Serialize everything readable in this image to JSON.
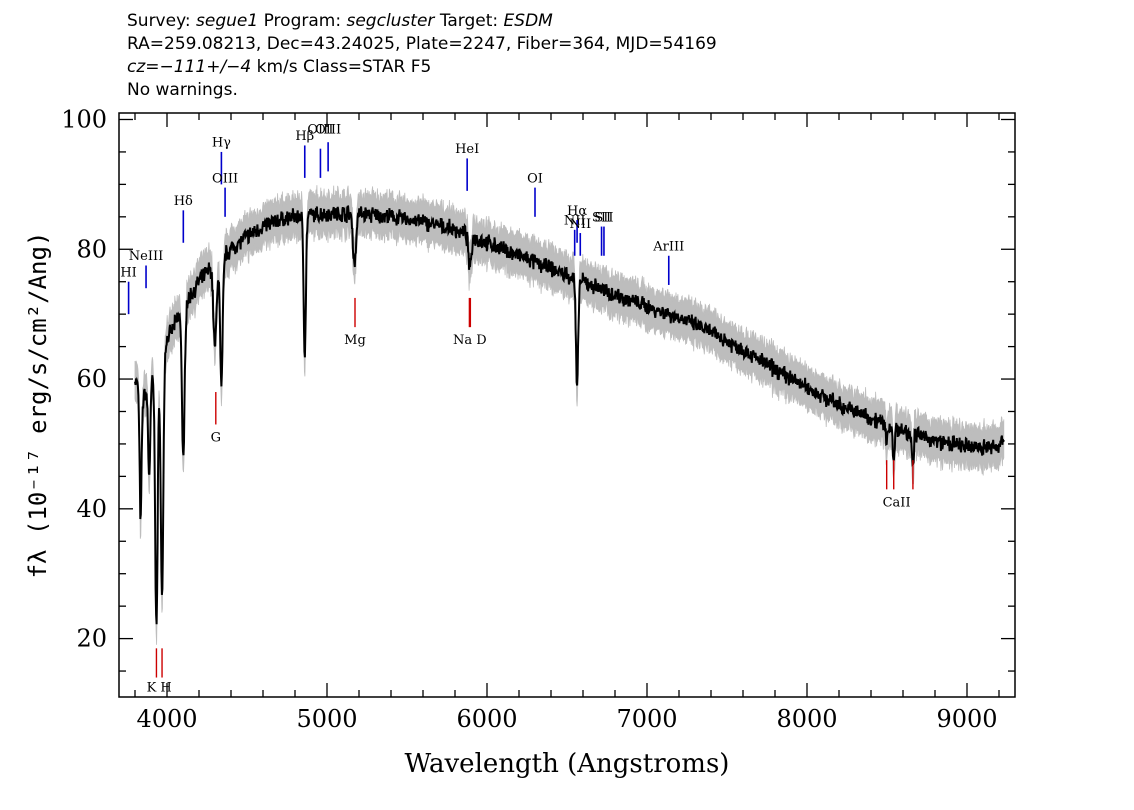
{
  "header": {
    "survey_label": "Survey:",
    "survey": "segue1",
    "program_label": "Program:",
    "program": "segcluster",
    "target_label": "Target:",
    "target": "ESDM",
    "line2": "RA=259.08213, Dec=43.24025, Plate=2247, Fiber=364, MJD=54169",
    "cz_label": "cz=",
    "cz_value": "−111+/−4",
    "cz_rest": " km/s Class=STAR F5",
    "line4": "No warnings."
  },
  "chart_data": {
    "type": "line",
    "title": "",
    "xlabel": "Wavelength (Angstroms)",
    "ylabel": "fλ (10⁻¹⁷ erg/s/cm²/Ang)",
    "xlim": [
      3700,
      9300
    ],
    "ylim": [
      11,
      101
    ],
    "x_ticks": [
      4000,
      5000,
      6000,
      7000,
      8000,
      9000
    ],
    "y_ticks": [
      20,
      40,
      60,
      80,
      100
    ],
    "grid": false,
    "colors": {
      "spectrum": "#000000",
      "error_band": "#bdbdbd",
      "emission": "#0000cc",
      "absorption": "#cc0000"
    },
    "continuum": [
      [
        3800,
        60
      ],
      [
        3850,
        57
      ],
      [
        3900,
        60
      ],
      [
        4000,
        66
      ],
      [
        4100,
        71
      ],
      [
        4200,
        75
      ],
      [
        4300,
        78
      ],
      [
        4400,
        80
      ],
      [
        4500,
        82
      ],
      [
        4600,
        83.5
      ],
      [
        4700,
        84.5
      ],
      [
        4800,
        85
      ],
      [
        5000,
        85.5
      ],
      [
        5200,
        85.5
      ],
      [
        5400,
        85
      ],
      [
        5600,
        84.2
      ],
      [
        5800,
        83
      ],
      [
        6000,
        81
      ],
      [
        6200,
        79
      ],
      [
        6400,
        77
      ],
      [
        6600,
        75
      ],
      [
        6800,
        73
      ],
      [
        7000,
        71.2
      ],
      [
        7200,
        69.5
      ],
      [
        7400,
        67.2
      ],
      [
        7600,
        64.5
      ],
      [
        7800,
        61.5
      ],
      [
        8000,
        58.7
      ],
      [
        8200,
        56
      ],
      [
        8400,
        54
      ],
      [
        8600,
        52
      ],
      [
        8800,
        50.5
      ],
      [
        9000,
        49.5
      ],
      [
        9200,
        49.5
      ],
      [
        9230,
        51.5
      ]
    ],
    "absorption_features": [
      {
        "x": 3835,
        "depth": 20,
        "width": 6
      },
      {
        "x": 3889,
        "depth": 14,
        "width": 7
      },
      {
        "x": 3934,
        "depth": 40,
        "width": 8
      },
      {
        "x": 3969,
        "depth": 38,
        "width": 8
      },
      {
        "x": 4102,
        "depth": 24,
        "width": 8
      },
      {
        "x": 4300,
        "depth": 13,
        "width": 10
      },
      {
        "x": 4340,
        "depth": 20,
        "width": 8
      },
      {
        "x": 4861,
        "depth": 21,
        "width": 7
      },
      {
        "x": 5172,
        "depth": 8,
        "width": 9
      },
      {
        "x": 5893,
        "depth": 5,
        "width": 9
      },
      {
        "x": 6563,
        "depth": 17,
        "width": 7
      },
      {
        "x": 8498,
        "depth": 3,
        "width": 5
      },
      {
        "x": 8542,
        "depth": 6,
        "width": 5
      },
      {
        "x": 8662,
        "depth": 5,
        "width": 5
      }
    ],
    "error_band_halfwidth": 2.5,
    "emission_lines": [
      {
        "label": "HI",
        "x": 3760,
        "y_low": 70,
        "y_high": 75,
        "label_y": 75.5
      },
      {
        "label": "NeIII",
        "x": 3869,
        "y_low": 74,
        "y_high": 77.5,
        "label_y": 78
      },
      {
        "label": "Hδ",
        "x": 4102,
        "y_low": 81,
        "y_high": 86,
        "label_y": 86.5
      },
      {
        "label": "Hγ",
        "x": 4340,
        "y_low": 90,
        "y_high": 95,
        "label_y": 95.5
      },
      {
        "label": "OIII",
        "x": 4363,
        "y_low": 85,
        "y_high": 89.5,
        "label_y": 90
      },
      {
        "label": "Hβ",
        "x": 4861,
        "y_low": 91,
        "y_high": 96,
        "label_y": 96.5
      },
      {
        "label": "OIII",
        "x": 4959,
        "y_low": 91,
        "y_high": 95.5,
        "label_y": 97.5
      },
      {
        "label": "OIII",
        "x": 5007,
        "y_low": 92,
        "y_high": 96.5,
        "label_y": 97.5
      },
      {
        "label": "HeI",
        "x": 5876,
        "y_low": 89,
        "y_high": 94,
        "label_y": 94.5
      },
      {
        "label": "OI",
        "x": 6300,
        "y_low": 85,
        "y_high": 89.5,
        "label_y": 90
      },
      {
        "label": "NII",
        "x": 6548,
        "y_low": 79,
        "y_high": 83,
        "label_y": 83.5
      },
      {
        "label": "Hα",
        "x": 6563,
        "y_low": 81,
        "y_high": 84.5,
        "label_y": 85
      },
      {
        "label": "NII",
        "x": 6583,
        "y_low": 79,
        "y_high": 82.5,
        "label_y": 83
      },
      {
        "label": "SII",
        "x": 6716,
        "y_low": 79,
        "y_high": 83.5,
        "label_y": 84
      },
      {
        "label": "SII",
        "x": 6731,
        "y_low": 79,
        "y_high": 83.5,
        "label_y": 84
      },
      {
        "label": "ArIII",
        "x": 7136,
        "y_low": 74.5,
        "y_high": 79,
        "label_y": 79.5
      }
    ],
    "absorption_lines": [
      {
        "label": "K",
        "x": 3934,
        "y_low": 14,
        "y_high": 18.5,
        "label_y": 12.5
      },
      {
        "label": "H",
        "x": 3969,
        "y_low": 14,
        "y_high": 18.5,
        "label_y": 12.5
      },
      {
        "label": "G",
        "x": 4305,
        "y_low": 53,
        "y_high": 58,
        "label_y": 51
      },
      {
        "label": "Mg",
        "x": 5175,
        "y_low": 68,
        "y_high": 72.5,
        "label_y": 66
      },
      {
        "label": "Na",
        "x": 5890,
        "y_low": 68,
        "y_high": 72.5,
        "label_y": 66
      },
      {
        "label": "D",
        "x": 5896,
        "y_low": 68,
        "y_high": 72.5,
        "label_y": 66
      },
      {
        "label": "CaII",
        "x": 8498,
        "y_low": 43,
        "y_high": 47.5,
        "label_y": 41
      },
      {
        "label": "CaII",
        "x": 8542,
        "y_low": 43,
        "y_high": 47.5,
        "label_y": 41
      },
      {
        "label": "CaII",
        "x": 8662,
        "y_low": 43,
        "y_high": 47.5,
        "label_y": 41
      }
    ],
    "label_texts": {
      "kh": "K H",
      "nad": "Na  D",
      "caii": "CaII"
    }
  }
}
